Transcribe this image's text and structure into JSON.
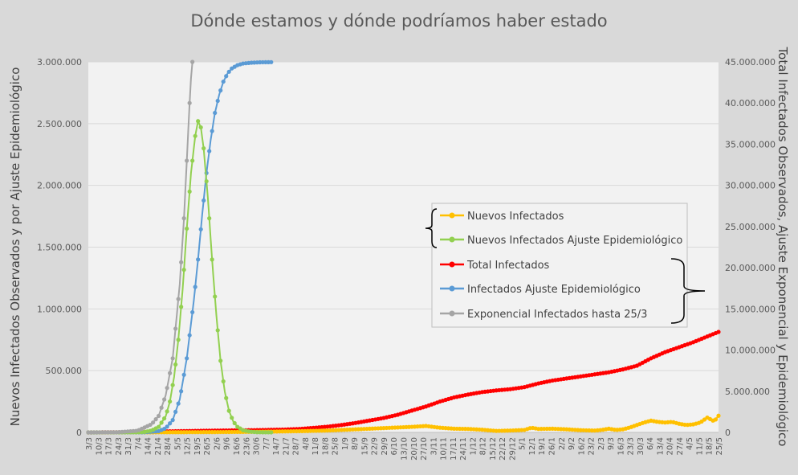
{
  "chart_data": {
    "type": "line",
    "title": "Dónde estamos y dónde podríamos haber estado",
    "ylabel_left": "Nuevos Infectados Observados y por Ajuste Epidemiológico",
    "ylabel_right": "Total Infectados Observados, Ajuste Exponencial y Epidemiológico",
    "y_left": {
      "range": [
        0,
        3000000
      ],
      "ticks": [
        0,
        500000,
        1000000,
        1500000,
        2000000,
        2500000,
        3000000
      ],
      "tick_labels": [
        "0",
        "500.000",
        "1.000.000",
        "1.500.000",
        "2.000.000",
        "2.500.000",
        "3.000.000"
      ]
    },
    "y_right": {
      "range": [
        0,
        45000000
      ],
      "ticks": [
        0,
        5000000,
        10000000,
        15000000,
        20000000,
        25000000,
        30000000,
        35000000,
        40000000,
        45000000
      ],
      "tick_labels": [
        "0",
        "5.000.000",
        "10.000.000",
        "15.000.000",
        "20.000.000",
        "25.000.000",
        "30.000.000",
        "35.000.000",
        "40.000.000",
        "45.000.000"
      ]
    },
    "x_axis": {
      "start": "3/3",
      "end": "25/5",
      "total_days": 448,
      "tick_labels": [
        "3/3",
        "10/3",
        "17/3",
        "24/3",
        "31/3",
        "7/4",
        "14/4",
        "21/4",
        "28/4",
        "5/5",
        "12/5",
        "19/5",
        "26/5",
        "2/6",
        "9/6",
        "16/6",
        "23/6",
        "30/6",
        "7/7",
        "14/7",
        "21/7",
        "28/7",
        "4/8",
        "11/8",
        "18/8",
        "25/8",
        "1/9",
        "8/9",
        "15/9",
        "22/9",
        "29/9",
        "6/10",
        "13/10",
        "20/10",
        "27/10",
        "3/11",
        "10/11",
        "17/11",
        "24/11",
        "1/12",
        "8/12",
        "15/12",
        "22/12",
        "29/12",
        "5/1",
        "12/1",
        "19/1",
        "26/1",
        "2/2",
        "9/2",
        "16/2",
        "23/2",
        "2/3",
        "9/3",
        "16/3",
        "23/3",
        "30/3",
        "6/4",
        "13/4",
        "20/4",
        "27/4",
        "4/5",
        "11/5",
        "18/5",
        "25/5"
      ]
    },
    "grid": true,
    "legend_position": "center-right",
    "series": [
      {
        "name": "Nuevos Infectados",
        "axis": "left",
        "color": "#ffc000",
        "points": [
          [
            0,
            0
          ],
          [
            30,
            300
          ],
          [
            60,
            1500
          ],
          [
            90,
            2500
          ],
          [
            120,
            5000
          ],
          [
            150,
            10000
          ],
          [
            170,
            15000
          ],
          [
            180,
            20000
          ],
          [
            190,
            25000
          ],
          [
            200,
            30000
          ],
          [
            210,
            35000
          ],
          [
            220,
            40000
          ],
          [
            230,
            45000
          ],
          [
            240,
            52000
          ],
          [
            250,
            38000
          ],
          [
            260,
            30000
          ],
          [
            270,
            28000
          ],
          [
            280,
            22000
          ],
          [
            290,
            12000
          ],
          [
            300,
            15000
          ],
          [
            310,
            20000
          ],
          [
            315,
            38000
          ],
          [
            320,
            28000
          ],
          [
            330,
            30000
          ],
          [
            340,
            25000
          ],
          [
            350,
            18000
          ],
          [
            360,
            15000
          ],
          [
            365,
            20000
          ],
          [
            370,
            30000
          ],
          [
            375,
            20000
          ],
          [
            380,
            25000
          ],
          [
            385,
            40000
          ],
          [
            390,
            60000
          ],
          [
            395,
            80000
          ],
          [
            400,
            95000
          ],
          [
            405,
            85000
          ],
          [
            410,
            80000
          ],
          [
            415,
            85000
          ],
          [
            420,
            70000
          ],
          [
            425,
            60000
          ],
          [
            430,
            65000
          ],
          [
            435,
            80000
          ],
          [
            440,
            120000
          ],
          [
            445,
            90000
          ],
          [
            448,
            135000
          ]
        ]
      },
      {
        "name": "Nuevos Infectados Ajuste Epidemiológico",
        "axis": "left",
        "color": "#92d050",
        "points": [
          [
            0,
            0
          ],
          [
            35,
            1000
          ],
          [
            40,
            4000
          ],
          [
            45,
            15000
          ],
          [
            50,
            45000
          ],
          [
            55,
            130000
          ],
          [
            58,
            250000
          ],
          [
            61,
            450000
          ],
          [
            64,
            750000
          ],
          [
            67,
            1150000
          ],
          [
            70,
            1650000
          ],
          [
            73,
            2100000
          ],
          [
            76,
            2400000
          ],
          [
            78,
            2520000
          ],
          [
            80,
            2470000
          ],
          [
            82,
            2300000
          ],
          [
            85,
            1900000
          ],
          [
            88,
            1400000
          ],
          [
            91,
            950000
          ],
          [
            94,
            580000
          ],
          [
            97,
            330000
          ],
          [
            100,
            175000
          ],
          [
            103,
            90000
          ],
          [
            106,
            45000
          ],
          [
            110,
            18000
          ],
          [
            115,
            6000
          ],
          [
            120,
            1500
          ],
          [
            130,
            200
          ]
        ]
      },
      {
        "name": "Total Infectados",
        "axis": "right",
        "color": "#ff0000",
        "points": [
          [
            0,
            0
          ],
          [
            30,
            30000
          ],
          [
            60,
            140000
          ],
          [
            90,
            220000
          ],
          [
            120,
            280000
          ],
          [
            140,
            350000
          ],
          [
            150,
            420000
          ],
          [
            160,
            550000
          ],
          [
            170,
            700000
          ],
          [
            180,
            900000
          ],
          [
            190,
            1150000
          ],
          [
            200,
            1450000
          ],
          [
            210,
            1750000
          ],
          [
            220,
            2150000
          ],
          [
            230,
            2650000
          ],
          [
            240,
            3150000
          ],
          [
            250,
            3750000
          ],
          [
            260,
            4250000
          ],
          [
            270,
            4600000
          ],
          [
            280,
            4900000
          ],
          [
            290,
            5100000
          ],
          [
            300,
            5250000
          ],
          [
            310,
            5500000
          ],
          [
            320,
            5950000
          ],
          [
            330,
            6300000
          ],
          [
            340,
            6550000
          ],
          [
            350,
            6800000
          ],
          [
            360,
            7050000
          ],
          [
            370,
            7300000
          ],
          [
            380,
            7650000
          ],
          [
            390,
            8100000
          ],
          [
            400,
            9000000
          ],
          [
            410,
            9750000
          ],
          [
            420,
            10350000
          ],
          [
            430,
            10950000
          ],
          [
            440,
            11650000
          ],
          [
            448,
            12200000
          ]
        ]
      },
      {
        "name": "Infectados Ajuste Epidemiológico",
        "axis": "right",
        "color": "#5b9bd5",
        "points": [
          [
            0,
            0
          ],
          [
            40,
            15000
          ],
          [
            50,
            150000
          ],
          [
            55,
            500000
          ],
          [
            60,
            1500000
          ],
          [
            65,
            4000000
          ],
          [
            70,
            9000000
          ],
          [
            75,
            16000000
          ],
          [
            78,
            21000000
          ],
          [
            81,
            26500000
          ],
          [
            84,
            31500000
          ],
          [
            87,
            35500000
          ],
          [
            90,
            38800000
          ],
          [
            93,
            41000000
          ],
          [
            96,
            42600000
          ],
          [
            99,
            43600000
          ],
          [
            102,
            44200000
          ],
          [
            106,
            44600000
          ],
          [
            110,
            44800000
          ],
          [
            116,
            44900000
          ],
          [
            122,
            44950000
          ],
          [
            130,
            44970000
          ]
        ]
      },
      {
        "name": "Exponencial Infectados hasta 25/3",
        "axis": "right",
        "color": "#a5a5a5",
        "points": [
          [
            0,
            0
          ],
          [
            20,
            20000
          ],
          [
            35,
            200000
          ],
          [
            45,
            1000000
          ],
          [
            50,
            2000000
          ],
          [
            55,
            4500000
          ],
          [
            60,
            9000000
          ],
          [
            65,
            18000000
          ],
          [
            68,
            26000000
          ],
          [
            70,
            33000000
          ],
          [
            72,
            40000000
          ],
          [
            73,
            43000000
          ],
          [
            74,
            45000000
          ]
        ]
      }
    ],
    "legend_brackets": [
      {
        "group": [
          "Nuevos Infectados",
          "Nuevos Infectados Ajuste Epidemiológico"
        ],
        "side": "left"
      },
      {
        "group": [
          "Total Infectados",
          "Infectados Ajuste Epidemiológico",
          "Exponencial Infectados hasta 25/3"
        ],
        "side": "right"
      }
    ]
  }
}
